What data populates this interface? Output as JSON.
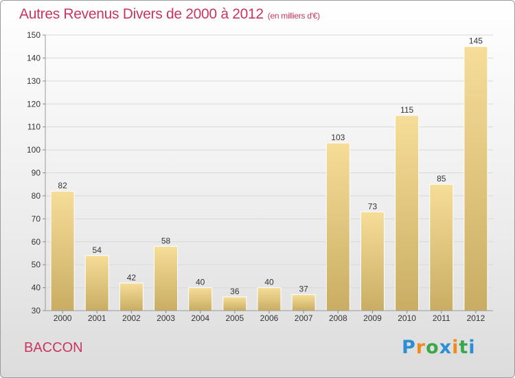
{
  "page": {
    "title": "Autres Revenus Divers de 2000 à 2012",
    "subtitle": "(en milliers d'€)",
    "city": "BACCON",
    "logo": {
      "text": "Proxiti",
      "letters": [
        "P",
        "r",
        "o",
        "x",
        "i",
        "t",
        "i"
      ],
      "colors": [
        "#2b8fd3",
        "#f08a1c",
        "#3aa84a",
        "#2b8fd3",
        "#f08a1c",
        "#3aa84a",
        "#2b8fd3"
      ]
    }
  },
  "chart_data": {
    "type": "bar",
    "categories": [
      "2000",
      "2001",
      "2002",
      "2003",
      "2004",
      "2005",
      "2006",
      "2007",
      "2008",
      "2009",
      "2010",
      "2011",
      "2012"
    ],
    "values": [
      82,
      54,
      42,
      58,
      40,
      36,
      40,
      37,
      103,
      73,
      115,
      85,
      145
    ],
    "title": "Autres Revenus Divers de 2000 à 2012",
    "ylim": [
      30,
      150
    ],
    "yticks": [
      30,
      40,
      50,
      60,
      70,
      80,
      90,
      100,
      110,
      120,
      130,
      140,
      150
    ],
    "grid": true,
    "bar_color": "#e8cc85",
    "title_color": "#c8365f"
  }
}
